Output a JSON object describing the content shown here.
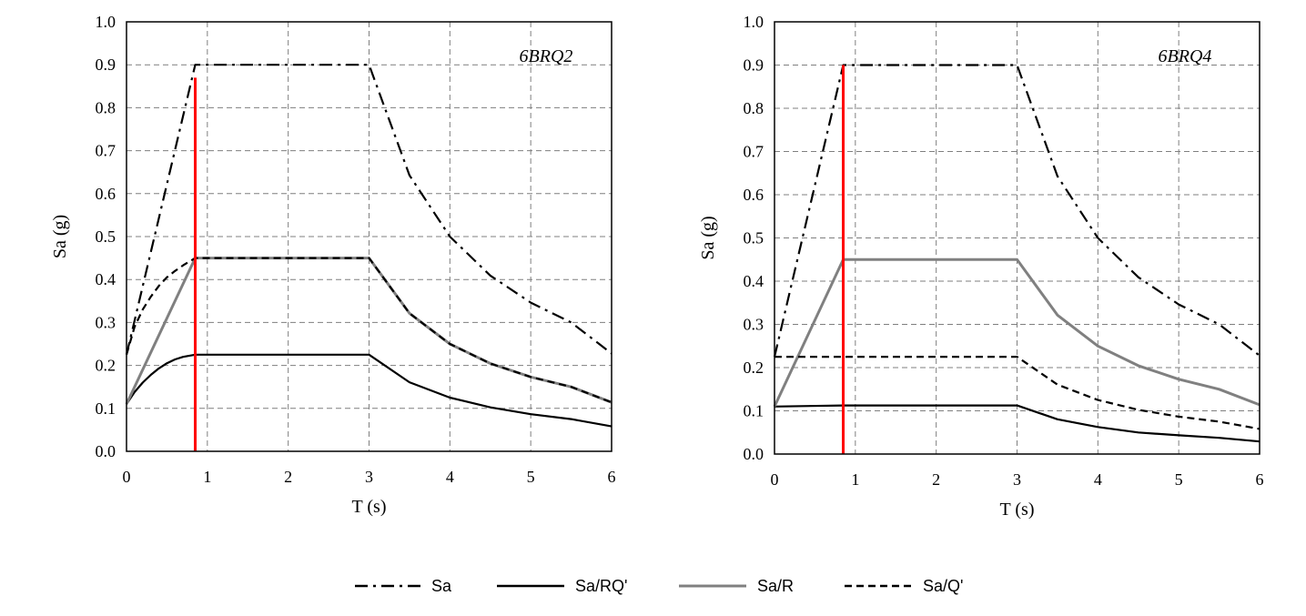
{
  "colors": {
    "black": "#000000",
    "gray": "#808080",
    "red": "#ff0000",
    "grid": "#7f7f7f"
  },
  "legend": [
    {
      "label": "Sa",
      "style": "dashdot",
      "color": "#000000"
    },
    {
      "label": "Sa/RQ'",
      "style": "solid",
      "color": "#000000"
    },
    {
      "label": "Sa/R",
      "style": "solid",
      "color": "#808080"
    },
    {
      "label": "Sa/Q'",
      "style": "dashed",
      "color": "#000000"
    }
  ],
  "chart_data": [
    {
      "type": "line",
      "annotation": "6BRQ2",
      "xlabel": "T (s)",
      "ylabel": "Sa (g)",
      "xlim": [
        0,
        6
      ],
      "ylim": [
        0,
        1.0
      ],
      "xticks": [
        0,
        1,
        2,
        3,
        4,
        5,
        6
      ],
      "yticks": [
        "0.0",
        "0.1",
        "0.2",
        "0.3",
        "0.4",
        "0.5",
        "0.6",
        "0.7",
        "0.8",
        "0.9",
        "1.0"
      ],
      "grid": true,
      "vertical_line": {
        "x": 0.85,
        "ymin": 0,
        "ymax": 0.87,
        "color": "#ff0000"
      },
      "series": [
        {
          "name": "Sa",
          "style": "dashdot",
          "color": "#000000",
          "x": [
            0,
            0.85,
            3,
            3.5,
            4,
            4.5,
            5,
            5.5,
            6
          ],
          "y": [
            0.225,
            0.9,
            0.9,
            0.6429,
            0.5,
            0.4091,
            0.3462,
            0.3,
            0.2278
          ]
        },
        {
          "name": "Sa/RQ'",
          "style": "solid",
          "color": "#000000",
          "x": [
            0,
            0.1,
            0.2,
            0.3,
            0.4,
            0.5,
            0.6,
            0.7,
            0.85,
            3,
            3.5,
            4,
            4.5,
            5,
            5.5,
            6
          ],
          "y": [
            0.11,
            0.138,
            0.16,
            0.178,
            0.193,
            0.205,
            0.214,
            0.22,
            0.225,
            0.225,
            0.1607,
            0.125,
            0.1023,
            0.0865,
            0.075,
            0.058
          ]
        },
        {
          "name": "Sa/R",
          "style": "solid",
          "color": "#808080",
          "x": [
            0,
            0.85,
            3,
            3.5,
            4,
            4.5,
            5,
            5.5,
            6
          ],
          "y": [
            0.11,
            0.45,
            0.45,
            0.3214,
            0.25,
            0.2045,
            0.173,
            0.15,
            0.1139
          ]
        },
        {
          "name": "Sa/Q'",
          "style": "dashed",
          "color": "#000000",
          "x": [
            0,
            0.1,
            0.2,
            0.3,
            0.4,
            0.5,
            0.6,
            0.7,
            0.85,
            3,
            3.5,
            4,
            4.5,
            5,
            5.5,
            6
          ],
          "y": [
            0.225,
            0.29,
            0.33,
            0.36,
            0.385,
            0.405,
            0.42,
            0.433,
            0.45,
            0.45,
            0.3214,
            0.25,
            0.2045,
            0.173,
            0.15,
            0.1139
          ]
        }
      ]
    },
    {
      "type": "line",
      "annotation": "6BRQ4",
      "xlabel": "T (s)",
      "ylabel": "Sa (g)",
      "xlim": [
        0,
        6
      ],
      "ylim": [
        0,
        1.0
      ],
      "xticks": [
        0,
        1,
        2,
        3,
        4,
        5,
        6
      ],
      "yticks": [
        "0.0",
        "0.1",
        "0.2",
        "0.3",
        "0.4",
        "0.5",
        "0.6",
        "0.7",
        "0.8",
        "0.9",
        "1.0"
      ],
      "grid": true,
      "vertical_line": {
        "x": 0.85,
        "ymin": 0,
        "ymax": 0.9,
        "color": "#ff0000"
      },
      "series": [
        {
          "name": "Sa",
          "style": "dashdot",
          "color": "#000000",
          "x": [
            0,
            0.85,
            3,
            3.5,
            4,
            4.5,
            5,
            5.5,
            6
          ],
          "y": [
            0.225,
            0.9,
            0.9,
            0.6429,
            0.5,
            0.4091,
            0.3462,
            0.3,
            0.2278
          ]
        },
        {
          "name": "Sa/RQ'",
          "style": "solid",
          "color": "#000000",
          "x": [
            0,
            0.85,
            3,
            3.5,
            4,
            4.5,
            5,
            5.5,
            6
          ],
          "y": [
            0.11,
            0.1125,
            0.1125,
            0.0804,
            0.0625,
            0.05,
            0.0433,
            0.0375,
            0.029
          ]
        },
        {
          "name": "Sa/R",
          "style": "solid",
          "color": "#808080",
          "x": [
            0,
            0.85,
            3,
            3.5,
            4,
            4.5,
            5,
            5.5,
            6
          ],
          "y": [
            0.11,
            0.45,
            0.45,
            0.3214,
            0.25,
            0.2045,
            0.173,
            0.15,
            0.1139
          ]
        },
        {
          "name": "Sa/Q'",
          "style": "dashed",
          "color": "#000000",
          "x": [
            0,
            0.85,
            3,
            3.5,
            4,
            4.5,
            5,
            5.5,
            6
          ],
          "y": [
            0.225,
            0.225,
            0.225,
            0.1607,
            0.125,
            0.1023,
            0.0865,
            0.075,
            0.058
          ]
        }
      ]
    }
  ]
}
